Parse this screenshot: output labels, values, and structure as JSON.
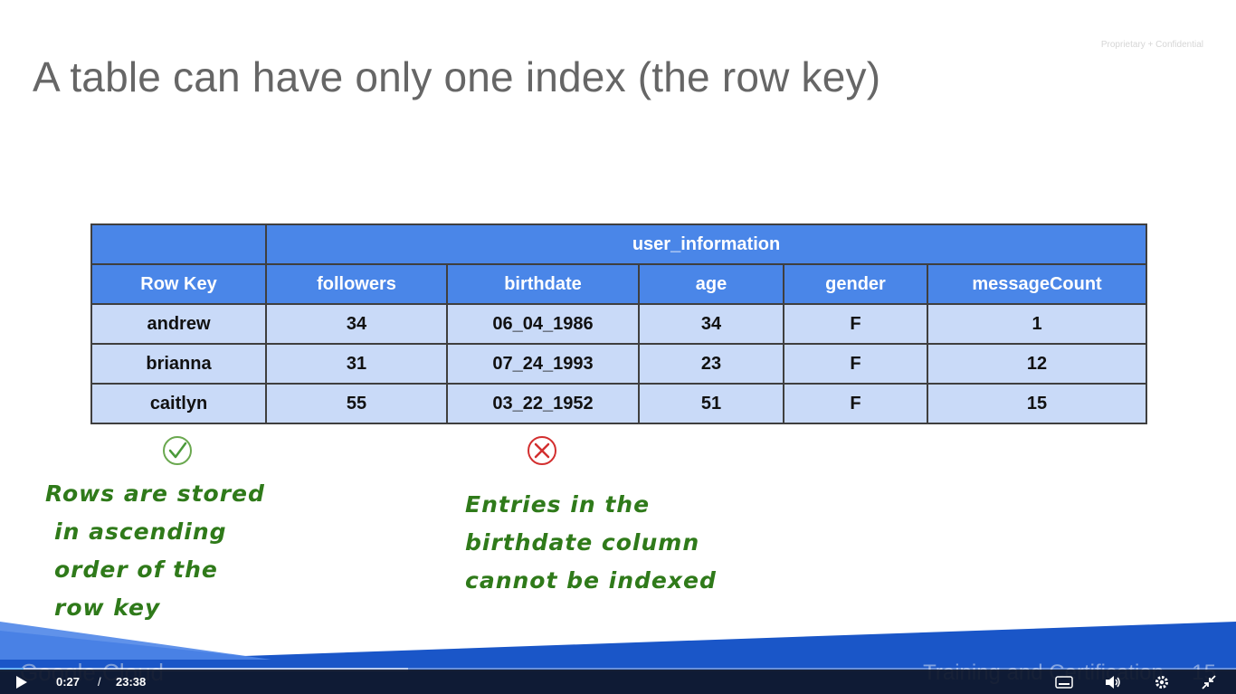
{
  "slide": {
    "confidential": "Proprietary + Confidential",
    "title": "A table can have only one index (the row key)",
    "table": {
      "group_header": "user_information",
      "columns": [
        "Row Key",
        "followers",
        "birthdate",
        "age",
        "gender",
        "messageCount"
      ],
      "rows": [
        [
          "andrew",
          "34",
          "06_04_1986",
          "34",
          "F",
          "1"
        ],
        [
          "brianna",
          "31",
          "07_24_1993",
          "23",
          "F",
          "12"
        ],
        [
          "caitlyn",
          "55",
          "03_22_1952",
          "51",
          "F",
          "15"
        ]
      ]
    },
    "marks": {
      "check_icon": "check-circle-icon",
      "cross_icon": "x-circle-icon",
      "check_color": "#4a9a3a",
      "cross_color": "#d32f2f"
    },
    "notes": {
      "left": [
        "Rows are stored",
        "in ascending",
        "order of the",
        "row key"
      ],
      "right": [
        "Entries in the",
        "birthdate column",
        "cannot be indexed"
      ]
    },
    "footer": {
      "brand": "Google Cloud",
      "training": "Training and Certification",
      "slide_number": "15"
    }
  },
  "player": {
    "current_time": "0:27",
    "separator": "/",
    "duration": "23:38",
    "progress_fraction": 0.019,
    "buffered_fraction": 0.33,
    "icons": [
      "play-icon",
      "captions-icon",
      "volume-icon",
      "settings-icon",
      "exit-fullscreen-icon"
    ]
  },
  "colors": {
    "header_blue": "#4a86e8",
    "cell_blue": "#c9daf8",
    "note_green": "#2f7a1a",
    "footer_blue": "#1a56c8"
  }
}
